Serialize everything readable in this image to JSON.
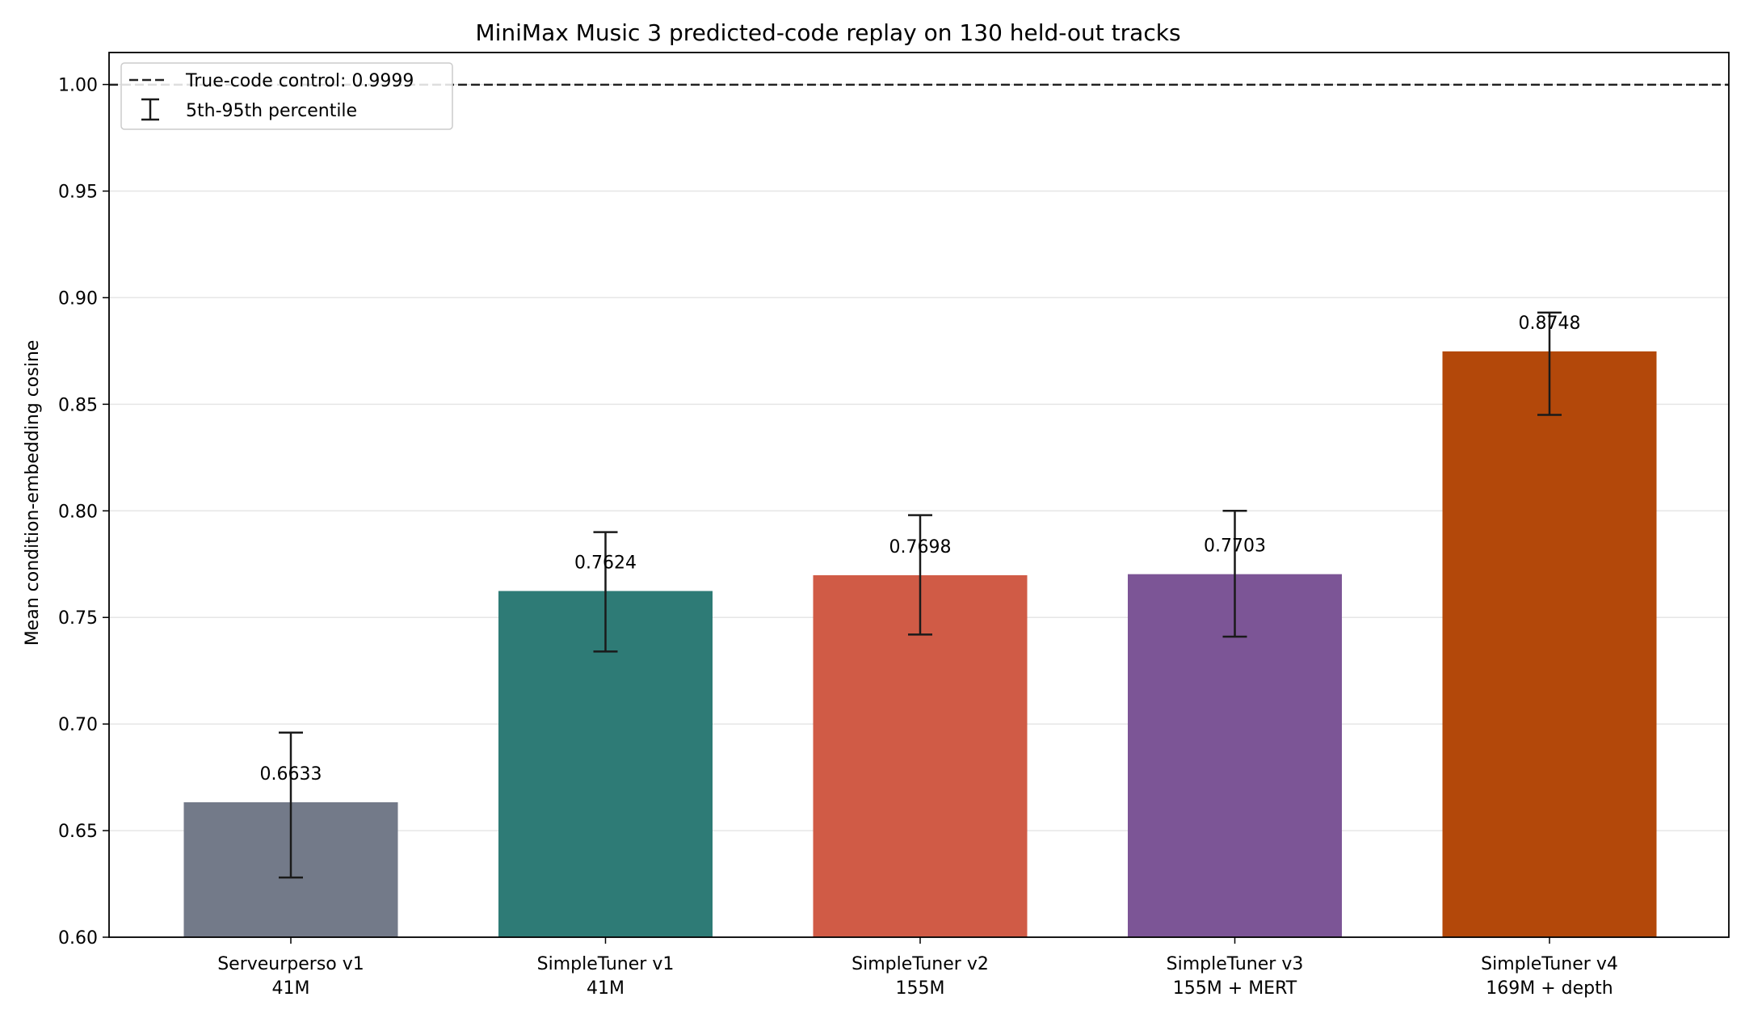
{
  "chart_data": {
    "type": "bar",
    "title": "MiniMax Music 3 predicted-code replay on 130 held-out tracks",
    "xlabel": "",
    "ylabel": "Mean condition-embedding cosine",
    "ylim": [
      0.6,
      1.015
    ],
    "yticks": [
      0.6,
      0.65,
      0.7,
      0.75,
      0.8,
      0.85,
      0.9,
      0.95,
      1.0
    ],
    "ytick_labels": [
      "0.60",
      "0.65",
      "0.70",
      "0.75",
      "0.80",
      "0.85",
      "0.90",
      "0.95",
      "1.00"
    ],
    "grid": "horizontal",
    "categories": [
      [
        "Serveurperso v1",
        "41M"
      ],
      [
        "SimpleTuner v1",
        "41M"
      ],
      [
        "SimpleTuner v2",
        "155M"
      ],
      [
        "SimpleTuner v3",
        "155M + MERT"
      ],
      [
        "SimpleTuner v4",
        "169M + depth"
      ]
    ],
    "values": [
      0.6633,
      0.7624,
      0.7698,
      0.7703,
      0.8748
    ],
    "value_labels": [
      "0.6633",
      "0.7624",
      "0.7698",
      "0.7703",
      "0.8748"
    ],
    "error_low": [
      0.628,
      0.734,
      0.742,
      0.741,
      0.845
    ],
    "error_high": [
      0.696,
      0.79,
      0.798,
      0.8,
      0.893
    ],
    "colors": [
      "#737a89",
      "#2e7b76",
      "#d05b46",
      "#7c5596",
      "#b3480a"
    ],
    "reference_line": {
      "value": 0.9999,
      "label": "True-code control: 0.9999",
      "style": "dashed",
      "color": "#222222"
    },
    "legend": {
      "placement": "top-left",
      "entries": [
        "True-code control: 0.9999",
        "5th-95th percentile"
      ]
    }
  }
}
